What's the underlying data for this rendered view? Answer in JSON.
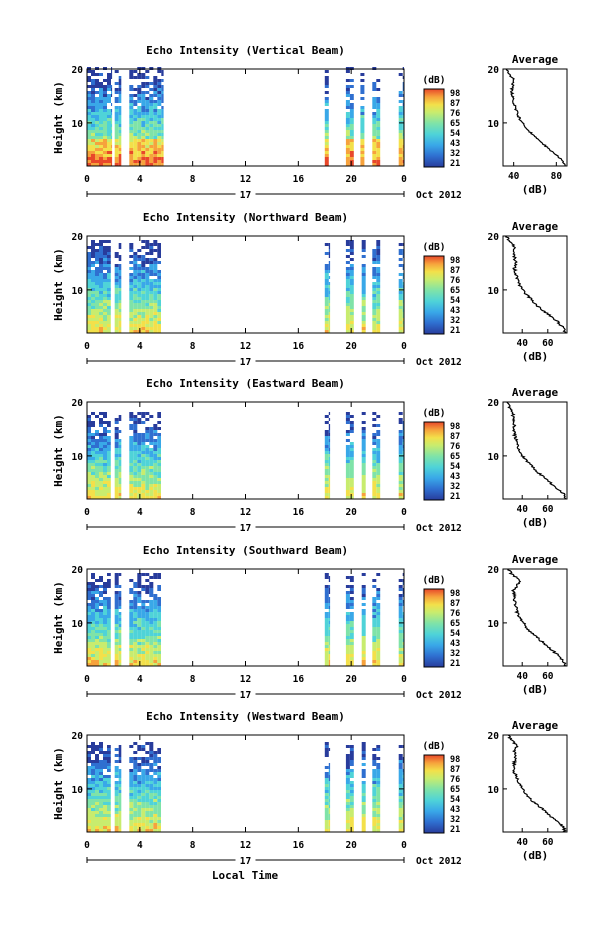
{
  "chart_data": [
    {
      "type": "heatmap",
      "title": "Echo Intensity (Vertical Beam)",
      "ylabel": "Height (km)",
      "x_ticks": [
        "0",
        "4",
        "8",
        "12",
        "16",
        "20",
        "0"
      ],
      "y_ticks": [
        "20",
        "10"
      ],
      "xlim": [
        0,
        24
      ],
      "ylim": [
        2,
        20
      ],
      "day_label": "17",
      "date_label": "Oct 2012",
      "colorbar": {
        "label": "(dB)",
        "ticks": [
          "98",
          "87",
          "76",
          "65",
          "54",
          "43",
          "32",
          "21"
        ],
        "range": [
          21,
          98
        ]
      },
      "data_periods_hours": [
        [
          0,
          1.9
        ],
        [
          2.1,
          2.6
        ],
        [
          3.2,
          5.8
        ],
        [
          18.0,
          18.3
        ],
        [
          19.6,
          20.2
        ],
        [
          20.7,
          21.0
        ],
        [
          21.6,
          22.2
        ],
        [
          23.6,
          24.0
        ]
      ],
      "data_top_km": 20,
      "profile": {
        "title": "Average",
        "xlabel": "(dB)",
        "x_ticks": [
          "40",
          "80"
        ],
        "y_ticks": [
          "20",
          "10"
        ],
        "xlim": [
          30,
          90
        ],
        "ylim": [
          2,
          20
        ],
        "height_km": [
          2,
          3,
          4,
          5,
          6,
          7,
          8,
          9,
          10,
          11,
          12,
          13,
          14,
          15,
          16,
          17,
          18,
          19,
          20
        ],
        "mean_db": [
          88,
          86,
          80,
          74,
          68,
          62,
          57,
          52,
          48,
          45,
          43,
          41,
          40,
          39,
          38,
          39,
          40,
          36,
          33
        ]
      }
    },
    {
      "type": "heatmap",
      "title": "Echo Intensity (Northward Beam)",
      "ylabel": "Height (km)",
      "x_ticks": [
        "0",
        "4",
        "8",
        "12",
        "16",
        "20",
        "0"
      ],
      "y_ticks": [
        "20",
        "10"
      ],
      "xlim": [
        0,
        24
      ],
      "ylim": [
        2,
        20
      ],
      "day_label": "17",
      "date_label": "Oct 2012",
      "colorbar": {
        "label": "(dB)",
        "ticks": [
          "98",
          "87",
          "76",
          "65",
          "54",
          "43",
          "32",
          "21"
        ],
        "range": [
          21,
          98
        ]
      },
      "data_periods_hours": [
        [
          0,
          1.8
        ],
        [
          2.1,
          2.6
        ],
        [
          3.2,
          5.6
        ],
        [
          18.0,
          18.4
        ],
        [
          19.6,
          20.2
        ],
        [
          20.8,
          21.1
        ],
        [
          21.6,
          22.2
        ],
        [
          23.6,
          24.0
        ]
      ],
      "data_top_km": 19,
      "profile": {
        "title": "Average",
        "xlabel": "(dB)",
        "x_ticks": [
          "40",
          "60"
        ],
        "y_ticks": [
          "20",
          "10"
        ],
        "xlim": [
          25,
          75
        ],
        "ylim": [
          2,
          20
        ],
        "height_km": [
          2,
          3,
          4,
          5,
          6,
          7,
          8,
          9,
          10,
          11,
          12,
          13,
          14,
          15,
          16,
          17,
          18,
          19,
          20
        ],
        "mean_db": [
          74,
          72,
          68,
          63,
          57,
          52,
          48,
          44,
          40,
          38,
          36,
          35,
          34,
          35,
          34,
          33,
          34,
          30,
          28
        ]
      }
    },
    {
      "type": "heatmap",
      "title": "Echo Intensity (Eastward Beam)",
      "ylabel": "Height (km)",
      "x_ticks": [
        "0",
        "4",
        "8",
        "12",
        "16",
        "20",
        "0"
      ],
      "y_ticks": [
        "20",
        "10"
      ],
      "xlim": [
        0,
        24
      ],
      "ylim": [
        2,
        20
      ],
      "day_label": "17",
      "date_label": "Oct 2012",
      "colorbar": {
        "label": "(dB)",
        "ticks": [
          "98",
          "87",
          "76",
          "65",
          "54",
          "43",
          "32",
          "21"
        ],
        "range": [
          21,
          98
        ]
      },
      "data_periods_hours": [
        [
          0,
          1.8
        ],
        [
          2.1,
          2.6
        ],
        [
          3.2,
          5.6
        ],
        [
          18.0,
          18.4
        ],
        [
          19.6,
          20.2
        ],
        [
          20.8,
          21.1
        ],
        [
          21.6,
          22.2
        ],
        [
          23.6,
          24.0
        ]
      ],
      "data_top_km": 18,
      "profile": {
        "title": "Average",
        "xlabel": "(dB)",
        "x_ticks": [
          "40",
          "60"
        ],
        "y_ticks": [
          "20",
          "10"
        ],
        "xlim": [
          25,
          75
        ],
        "ylim": [
          2,
          20
        ],
        "height_km": [
          2,
          3,
          4,
          5,
          6,
          7,
          8,
          9,
          10,
          11,
          12,
          13,
          14,
          15,
          16,
          17,
          18,
          19,
          20
        ],
        "mean_db": [
          74,
          72,
          67,
          62,
          57,
          52,
          48,
          44,
          40,
          38,
          36,
          35,
          34,
          33,
          34,
          33,
          33,
          30,
          28
        ]
      }
    },
    {
      "type": "heatmap",
      "title": "Echo Intensity (Southward Beam)",
      "ylabel": "Height (km)",
      "x_ticks": [
        "0",
        "4",
        "8",
        "12",
        "16",
        "20",
        "0"
      ],
      "y_ticks": [
        "20",
        "10"
      ],
      "xlim": [
        0,
        24
      ],
      "ylim": [
        2,
        20
      ],
      "day_label": "17",
      "date_label": "Oct 2012",
      "colorbar": {
        "label": "(dB)",
        "ticks": [
          "98",
          "87",
          "76",
          "65",
          "54",
          "43",
          "32",
          "21"
        ],
        "range": [
          21,
          98
        ]
      },
      "data_periods_hours": [
        [
          0,
          1.8
        ],
        [
          2.1,
          2.6
        ],
        [
          3.2,
          5.6
        ],
        [
          18.0,
          18.4
        ],
        [
          19.6,
          20.2
        ],
        [
          20.8,
          21.1
        ],
        [
          21.6,
          22.2
        ],
        [
          23.6,
          24.0
        ]
      ],
      "data_top_km": 19,
      "profile": {
        "title": "Average",
        "xlabel": "(dB)",
        "x_ticks": [
          "40",
          "60"
        ],
        "y_ticks": [
          "20",
          "10"
        ],
        "xlim": [
          25,
          75
        ],
        "ylim": [
          2,
          20
        ],
        "height_km": [
          2,
          3,
          4,
          5,
          6,
          7,
          8,
          9,
          10,
          11,
          12,
          13,
          14,
          15,
          16,
          17,
          18,
          19,
          20
        ],
        "mean_db": [
          74,
          72,
          68,
          63,
          58,
          53,
          48,
          44,
          41,
          38,
          36,
          35,
          34,
          34,
          33,
          36,
          38,
          32,
          29
        ]
      }
    },
    {
      "type": "heatmap",
      "title": "Echo Intensity (Westward Beam)",
      "ylabel": "Height (km)",
      "x_ticks": [
        "0",
        "4",
        "8",
        "12",
        "16",
        "20",
        "0"
      ],
      "y_ticks": [
        "20",
        "10"
      ],
      "xlim": [
        0,
        24
      ],
      "ylim": [
        2,
        20
      ],
      "day_label": "17",
      "date_label": "Oct 2012",
      "colorbar": {
        "label": "(dB)",
        "ticks": [
          "98",
          "87",
          "76",
          "65",
          "54",
          "43",
          "32",
          "21"
        ],
        "range": [
          21,
          98
        ]
      },
      "data_periods_hours": [
        [
          0,
          1.8
        ],
        [
          2.1,
          2.6
        ],
        [
          3.2,
          5.6
        ],
        [
          18.0,
          18.4
        ],
        [
          19.6,
          20.2
        ],
        [
          20.8,
          21.1
        ],
        [
          21.6,
          22.2
        ],
        [
          23.6,
          24.0
        ]
      ],
      "data_top_km": 18.5,
      "profile": {
        "title": "Average",
        "xlabel": "(dB)",
        "x_ticks": [
          "40",
          "60"
        ],
        "y_ticks": [
          "20",
          "10"
        ],
        "xlim": [
          25,
          75
        ],
        "ylim": [
          2,
          20
        ],
        "height_km": [
          2,
          3,
          4,
          5,
          6,
          7,
          8,
          9,
          10,
          11,
          12,
          13,
          14,
          15,
          16,
          17,
          18,
          19,
          20
        ],
        "mean_db": [
          74,
          72,
          67,
          62,
          57,
          52,
          47,
          43,
          40,
          38,
          36,
          34,
          33,
          34,
          35,
          34,
          36,
          32,
          29
        ]
      }
    }
  ],
  "shared_xlabel": "Local Time",
  "colormap": [
    "#283c9c",
    "#2f6fd0",
    "#39a8e8",
    "#4fd3d8",
    "#7fe3a8",
    "#c8ec6e",
    "#f3e04a",
    "#f6a23c",
    "#e8482a"
  ]
}
